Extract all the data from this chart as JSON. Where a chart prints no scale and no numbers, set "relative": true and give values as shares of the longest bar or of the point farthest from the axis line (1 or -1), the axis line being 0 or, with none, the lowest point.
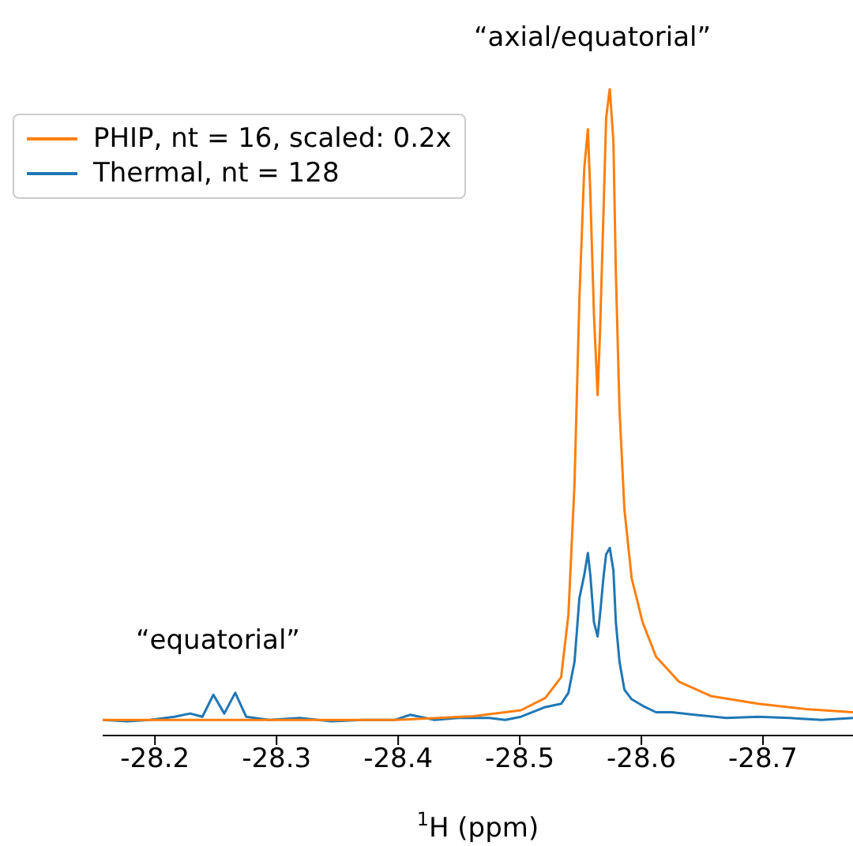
{
  "chart_data": {
    "type": "line",
    "relative": true,
    "xlabel": "$^{1}$H (ppm)",
    "xlim": [
      -28.157,
      -28.774
    ],
    "xticks": [
      -28.2,
      -28.3,
      -28.4,
      -28.5,
      -28.6,
      -28.7
    ],
    "legend": "top left",
    "marker": "none",
    "line_style": "solid",
    "annotations": [
      "“axial/equatorial”",
      "“equatorial”"
    ],
    "series": [
      {
        "name": "PHIP, nt = 16, scaled: 0.2x",
        "color": "#ff7f0e",
        "x": [
          -28.157,
          -28.268,
          -28.397,
          -28.462,
          -28.501,
          -28.521,
          -28.534,
          -28.54,
          -28.545,
          -28.549,
          -28.553,
          -28.556,
          -28.558,
          -28.561,
          -28.564,
          -28.566,
          -28.569,
          -28.571,
          -28.574,
          -28.577,
          -28.579,
          -28.582,
          -28.586,
          -28.592,
          -28.601,
          -28.612,
          -28.631,
          -28.657,
          -28.696,
          -28.735,
          -28.774
        ],
        "values": [
          0.024,
          0.024,
          0.024,
          0.03,
          0.039,
          0.058,
          0.09,
          0.187,
          0.389,
          0.674,
          0.876,
          0.937,
          0.837,
          0.65,
          0.526,
          0.625,
          0.82,
          0.954,
          1.0,
          0.917,
          0.715,
          0.504,
          0.35,
          0.243,
          0.175,
          0.122,
          0.083,
          0.061,
          0.049,
          0.041,
          0.036
        ]
      },
      {
        "name": "Thermal, nt = 128",
        "color": "#1f77b4",
        "x": [
          -28.157,
          -28.177,
          -28.196,
          -28.216,
          -28.229,
          -28.239,
          -28.248,
          -28.257,
          -28.266,
          -28.275,
          -28.294,
          -28.319,
          -28.345,
          -28.371,
          -28.397,
          -28.41,
          -28.43,
          -28.449,
          -28.475,
          -28.488,
          -28.501,
          -28.521,
          -28.534,
          -28.54,
          -28.545,
          -28.549,
          -28.553,
          -28.556,
          -28.558,
          -28.561,
          -28.564,
          -28.566,
          -28.569,
          -28.571,
          -28.574,
          -28.577,
          -28.579,
          -28.582,
          -28.586,
          -28.592,
          -28.601,
          -28.612,
          -28.625,
          -28.644,
          -28.67,
          -28.696,
          -28.722,
          -28.748,
          -28.774
        ],
        "values": [
          0.024,
          0.022,
          0.024,
          0.029,
          0.034,
          0.029,
          0.063,
          0.034,
          0.066,
          0.029,
          0.024,
          0.027,
          0.022,
          0.024,
          0.024,
          0.032,
          0.024,
          0.027,
          0.027,
          0.024,
          0.029,
          0.044,
          0.049,
          0.066,
          0.114,
          0.212,
          0.248,
          0.282,
          0.248,
          0.175,
          0.153,
          0.187,
          0.248,
          0.28,
          0.29,
          0.255,
          0.175,
          0.114,
          0.071,
          0.056,
          0.046,
          0.036,
          0.036,
          0.032,
          0.027,
          0.029,
          0.027,
          0.024,
          0.027
        ]
      }
    ]
  }
}
